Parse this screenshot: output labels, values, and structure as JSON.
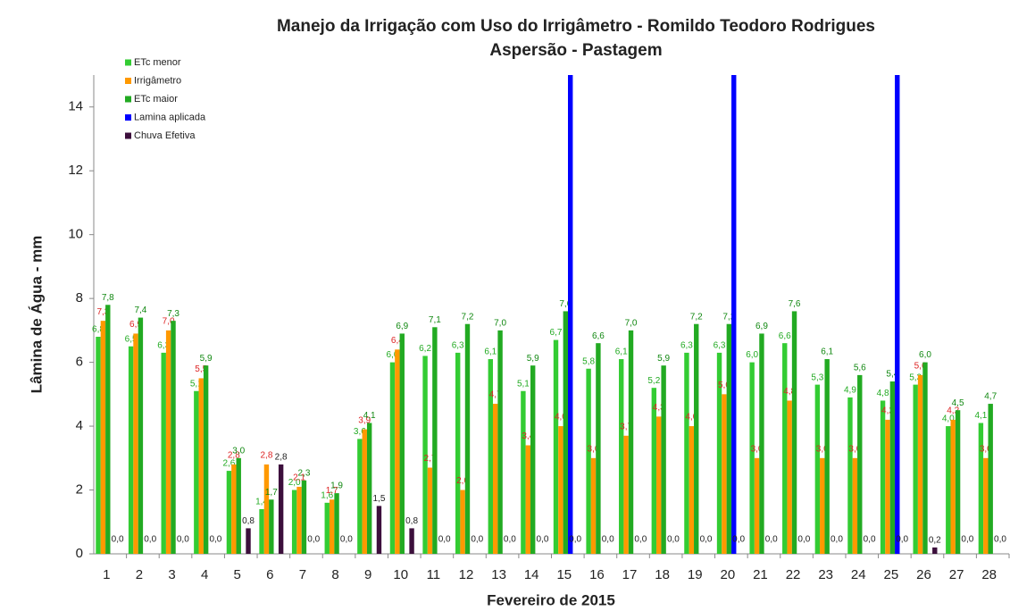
{
  "chart_data": {
    "type": "bar",
    "title": "Manejo da Irrigação com Uso do Irrigâmetro - Romildo Teodoro Rodrigues",
    "subtitle": "Aspersão - Pastagem",
    "y_label": "Lâmina de Água - mm",
    "x_label": "Fevereiro de 2015",
    "categories": [
      "1",
      "2",
      "3",
      "4",
      "5",
      "6",
      "7",
      "8",
      "9",
      "10",
      "11",
      "12",
      "13",
      "14",
      "15",
      "16",
      "17",
      "18",
      "19",
      "20",
      "21",
      "22",
      "23",
      "24",
      "25",
      "26",
      "27",
      "28"
    ],
    "series": [
      {
        "name": "ETc menor",
        "color": "#33cc33",
        "label_color": "#22aa22",
        "values": [
          6.8,
          6.5,
          6.3,
          5.1,
          2.6,
          1.4,
          2.0,
          1.6,
          3.6,
          6.0,
          6.2,
          6.3,
          6.1,
          5.1,
          6.7,
          5.8,
          6.1,
          5.2,
          6.3,
          6.3,
          6.0,
          6.6,
          5.3,
          4.9,
          4.8,
          5.3,
          4.0,
          4.1
        ],
        "value_labels": [
          "6,8",
          "6,5",
          "6,3",
          "5,1",
          "2,6",
          "1,4",
          "2,0",
          "1,6",
          "3,6",
          "6,0",
          "6,2",
          "6,3",
          "6,1",
          "5,1",
          "6,7",
          "5,8",
          "6,1",
          "5,2",
          "6,3",
          "6,3",
          "6,0",
          "6,6",
          "5,3",
          "4,9",
          "4,8",
          "5,3",
          "4,0",
          "4,1"
        ]
      },
      {
        "name": "Irrigâmetro",
        "color": "#ff9900",
        "label_color": "#dd2222",
        "values": [
          7.3,
          6.9,
          7.0,
          5.5,
          2.8,
          2.8,
          2.1,
          1.7,
          3.9,
          6.4,
          2.7,
          2.0,
          4.7,
          3.4,
          4.0,
          3.0,
          3.7,
          4.3,
          4.0,
          5.0,
          3.0,
          4.8,
          3.0,
          3.0,
          4.2,
          5.6,
          4.2,
          3.0
        ],
        "value_labels": [
          "7,3",
          "6,9",
          "7,0",
          "5,5",
          "2,8",
          "2,8",
          "2,1",
          "1,7",
          "3,9",
          "6,4",
          "2,7",
          "2,0",
          "4,7",
          "3,4",
          "4,0",
          "3,0",
          "3,7",
          "4,3",
          "4,0",
          "5,0",
          "3,0",
          "4,8",
          "3,0",
          "3,0",
          "4,2",
          "5,6",
          "4,2",
          "3,0"
        ]
      },
      {
        "name": "ETc maior",
        "color": "#22aa22",
        "label_color": "#118811",
        "values": [
          7.8,
          7.4,
          7.3,
          5.9,
          3.0,
          1.7,
          2.3,
          1.9,
          4.1,
          6.9,
          7.1,
          7.2,
          7.0,
          5.9,
          7.6,
          6.6,
          7.0,
          5.9,
          7.2,
          7.2,
          6.9,
          7.6,
          6.1,
          5.6,
          5.4,
          6.0,
          4.5,
          4.7
        ],
        "value_labels": [
          "7,8",
          "7,4",
          "7,3",
          "5,9",
          "3,0",
          "1,7",
          "2,3",
          "1,9",
          "4,1",
          "6,9",
          "7,1",
          "7,2",
          "7,0",
          "5,9",
          "7,6",
          "6,6",
          "7,0",
          "5,9",
          "7,2",
          "7,2",
          "6,9",
          "7,6",
          "6,1",
          "5,6",
          "5,4",
          "6,0",
          "4,5",
          "4,7"
        ]
      },
      {
        "name": "Lamina aplicada",
        "color": "#0000ff",
        "values": [
          0,
          0,
          0,
          0,
          0,
          0,
          0,
          0,
          0,
          0,
          0,
          0,
          0,
          0,
          15,
          0,
          0,
          0,
          0,
          15,
          0,
          0,
          0,
          0,
          15,
          0,
          0,
          0
        ]
      },
      {
        "name": "Chuva Efetiva",
        "color": "#3c0f3c",
        "label_color": "#222222",
        "values": [
          0,
          0,
          0,
          0,
          0.8,
          2.8,
          0,
          0,
          1.5,
          0.8,
          0,
          0,
          0,
          0,
          0,
          0,
          0,
          0,
          0,
          0,
          0,
          0,
          0,
          0,
          0,
          0.2,
          0,
          0
        ],
        "value_labels": [
          "0,0",
          "0,0",
          "0,0",
          "0,0",
          "0,8",
          "2,8",
          "0,0",
          "0,0",
          "1,5",
          "0,8",
          "0,0",
          "0,0",
          "0,0",
          "0,0",
          "0,0",
          "0,0",
          "0,0",
          "0,0",
          "0,0",
          "0,0",
          "0,0",
          "0,0",
          "0,0",
          "0,0",
          "0,0",
          "0,2",
          "0,0",
          "0,0"
        ]
      }
    ],
    "ylim": [
      0,
      15
    ],
    "yticks": [
      0,
      2,
      4,
      6,
      8,
      10,
      12,
      14
    ],
    "grid": false,
    "legend": "top-left"
  }
}
